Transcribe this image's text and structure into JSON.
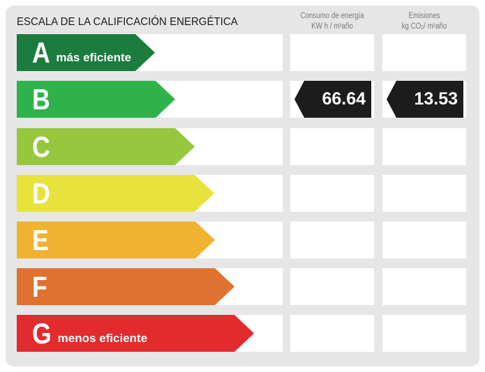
{
  "title": "ESCALA DE LA CALIFICACIÓN ENERGÉTICA",
  "columns": {
    "consumo": {
      "line1": "Consumo de energía",
      "line2": "KW h / m²año"
    },
    "emisiones": {
      "line1": "Emisiones",
      "line2a": "kg CO",
      "line2sub": "2",
      "line2b": "/ m²año"
    }
  },
  "ratings": [
    {
      "letter": "A",
      "desc": "más eficiente",
      "color": "#1b7c3e"
    },
    {
      "letter": "B",
      "desc": "",
      "color": "#2fb24a"
    },
    {
      "letter": "C",
      "desc": "",
      "color": "#95c83f"
    },
    {
      "letter": "D",
      "desc": "",
      "color": "#e8e33c"
    },
    {
      "letter": "E",
      "desc": "",
      "color": "#f0b331"
    },
    {
      "letter": "F",
      "desc": "",
      "color": "#e07231"
    },
    {
      "letter": "G",
      "desc": "menos eficiente",
      "color": "#e32b2e"
    }
  ],
  "current": {
    "rating": "B",
    "consumo": "66.64",
    "emisiones": "13.53"
  }
}
